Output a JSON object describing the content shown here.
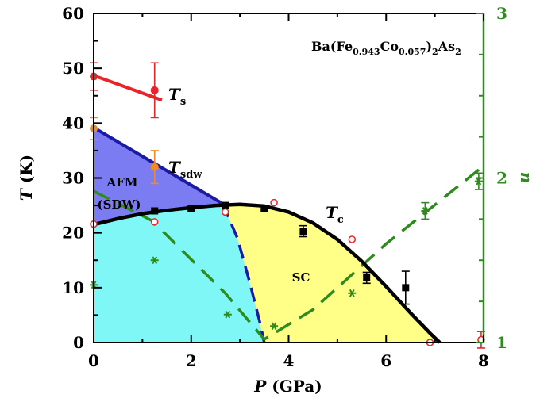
{
  "chart_data": {
    "type": "scatter",
    "xlabel": "P (GPa)",
    "ylabel": "T (K)",
    "y2label": "n",
    "xlim": [
      0,
      8
    ],
    "ylim": [
      0,
      60
    ],
    "y2lim": [
      1,
      3
    ],
    "x_ticks": [
      "0",
      "2",
      "4",
      "6",
      "8"
    ],
    "y_ticks": [
      "0",
      "10",
      "20",
      "30",
      "40",
      "50",
      "60"
    ],
    "y2_ticks": [
      "1",
      "2",
      "3"
    ],
    "compound_label": "Ba(Fe0.943Co0.057)2As2",
    "regions": [
      {
        "label": "AFM (SDW)",
        "color": "#7b7bf2"
      },
      {
        "label": "SC",
        "color": "#ffff88"
      },
      {
        "label": "",
        "color": "#7ff7f7"
      }
    ],
    "curve_labels": {
      "Ts": "T",
      "Ts_sub": "s",
      "Tsdw": "T",
      "Tsdw_sub": "sdw",
      "Tc": "T",
      "Tc_sub": "c"
    },
    "series": [
      {
        "name": "Ts",
        "color": "#e8242a",
        "points": [
          {
            "x": 0,
            "y": 48.5,
            "err": 2.5
          },
          {
            "x": 1.25,
            "y": 46,
            "err": 5
          }
        ],
        "fit": [
          [
            0,
            48.7
          ],
          [
            1.4,
            44.2
          ]
        ]
      },
      {
        "name": "Tsdw",
        "color": "#f08a24",
        "points": [
          {
            "x": 0,
            "y": 39,
            "err": 2
          },
          {
            "x": 1.25,
            "y": 32,
            "err": 3
          }
        ],
        "fit": [
          [
            0,
            39.2
          ],
          [
            2.65,
            25.3
          ]
        ]
      },
      {
        "name": "Tc filled",
        "color": "#000000",
        "points": [
          {
            "x": 1.25,
            "y": 24
          },
          {
            "x": 2,
            "y": 24.5
          },
          {
            "x": 2.7,
            "y": 25
          },
          {
            "x": 3.5,
            "y": 24.5
          },
          {
            "x": 4.3,
            "y": 20.3,
            "err": 1
          },
          {
            "x": 5.6,
            "y": 11.8,
            "err": 1
          },
          {
            "x": 6.4,
            "y": 10,
            "err": 3
          }
        ]
      },
      {
        "name": "Tc open",
        "color": "#e8242a",
        "points": [
          {
            "x": 0,
            "y": 21.6
          },
          {
            "x": 1.25,
            "y": 22
          },
          {
            "x": 2.7,
            "y": 23.8
          },
          {
            "x": 3.7,
            "y": 25.5
          },
          {
            "x": 5.3,
            "y": 18.8
          },
          {
            "x": 6.9,
            "y": 0
          },
          {
            "x": 7.95,
            "y": 0.5,
            "err": 1.5
          }
        ]
      },
      {
        "name": "n",
        "color": "#2e8b1e",
        "axis": "right",
        "points": [
          {
            "x": 0,
            "y": 1.35
          },
          {
            "x": 1.25,
            "y": 1.5
          },
          {
            "x": 2.75,
            "y": 1.17
          },
          {
            "x": 3.7,
            "y": 1.1
          },
          {
            "x": 5.3,
            "y": 1.3
          },
          {
            "x": 6.8,
            "y": 1.8,
            "err": 0.05
          },
          {
            "x": 7.9,
            "y": 1.98,
            "err": 0.05
          }
        ]
      }
    ],
    "tc_curve": [
      [
        0,
        21.5
      ],
      [
        0.5,
        22.6
      ],
      [
        1,
        23.5
      ],
      [
        1.5,
        24.1
      ],
      [
        2,
        24.6
      ],
      [
        2.5,
        25
      ],
      [
        3,
        25.2
      ],
      [
        3.5,
        24.9
      ],
      [
        4,
        23.8
      ],
      [
        4.5,
        21.8
      ],
      [
        5,
        18.8
      ],
      [
        5.5,
        14.8
      ],
      [
        6,
        10.2
      ],
      [
        6.5,
        5.4
      ],
      [
        6.9,
        1.7
      ],
      [
        7.1,
        0
      ]
    ],
    "afm_boundary_dashed": [
      [
        2.65,
        25.3
      ],
      [
        2.95,
        19
      ],
      [
        3.2,
        11
      ],
      [
        3.4,
        4
      ],
      [
        3.5,
        0
      ]
    ],
    "n_dashed": [
      [
        0,
        1.92
      ],
      [
        1.2,
        1.74
      ],
      [
        2.7,
        1.3
      ],
      [
        3.5,
        1.02
      ],
      [
        4.5,
        1.2
      ],
      [
        6,
        1.6
      ],
      [
        7.9,
        2.05
      ]
    ]
  }
}
